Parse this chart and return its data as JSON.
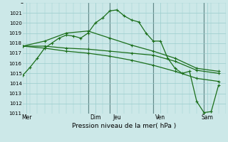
{
  "background_color": "#cce8e8",
  "grid_color": "#99cccc",
  "line_color": "#1a6e1a",
  "xlabel": "Pression niveau de la mer( hPa )",
  "ylim": [
    1011,
    1022
  ],
  "xlim": [
    0,
    28
  ],
  "yticks": [
    1011,
    1012,
    1013,
    1014,
    1015,
    1016,
    1017,
    1018,
    1019,
    1020,
    1021
  ],
  "day_labels": [
    "Mer",
    "Dim",
    "Jeu",
    "Ven",
    "Sam"
  ],
  "day_positions": [
    0.5,
    10,
    13,
    19,
    25.5
  ],
  "vline_positions": [
    9,
    12,
    18,
    25
  ],
  "series": [
    {
      "x": [
        0,
        1,
        2,
        3,
        4,
        5,
        6,
        7,
        8,
        9,
        10,
        11,
        12,
        13,
        14,
        15,
        16,
        17,
        18,
        19,
        20,
        21,
        22,
        23,
        24,
        25,
        26,
        27
      ],
      "y": [
        1014.8,
        1015.6,
        1016.5,
        1017.5,
        1018.0,
        1018.5,
        1018.8,
        1018.7,
        1018.5,
        1019.0,
        1020.0,
        1020.5,
        1021.2,
        1021.3,
        1020.7,
        1020.3,
        1020.1,
        1019.0,
        1018.2,
        1018.2,
        1016.5,
        1015.5,
        1015.0,
        1015.2,
        1012.2,
        1011.1,
        1011.2,
        1013.8
      ],
      "marker": "+",
      "lw": 0.9
    },
    {
      "x": [
        0,
        3,
        6,
        9,
        12,
        15,
        18,
        21,
        24,
        27
      ],
      "y": [
        1017.7,
        1018.2,
        1019.0,
        1019.2,
        1018.5,
        1017.8,
        1017.2,
        1016.5,
        1015.5,
        1015.2
      ],
      "marker": "+",
      "lw": 0.9
    },
    {
      "x": [
        0,
        3,
        6,
        9,
        12,
        15,
        18,
        21,
        24,
        27
      ],
      "y": [
        1017.7,
        1017.7,
        1017.5,
        1017.4,
        1017.2,
        1017.0,
        1016.8,
        1016.2,
        1015.3,
        1015.0
      ],
      "marker": "+",
      "lw": 0.9
    },
    {
      "x": [
        0,
        3,
        6,
        9,
        12,
        15,
        18,
        21,
        24,
        27
      ],
      "y": [
        1017.7,
        1017.5,
        1017.2,
        1017.0,
        1016.7,
        1016.3,
        1015.8,
        1015.2,
        1014.5,
        1014.2
      ],
      "marker": "+",
      "lw": 0.9
    }
  ]
}
